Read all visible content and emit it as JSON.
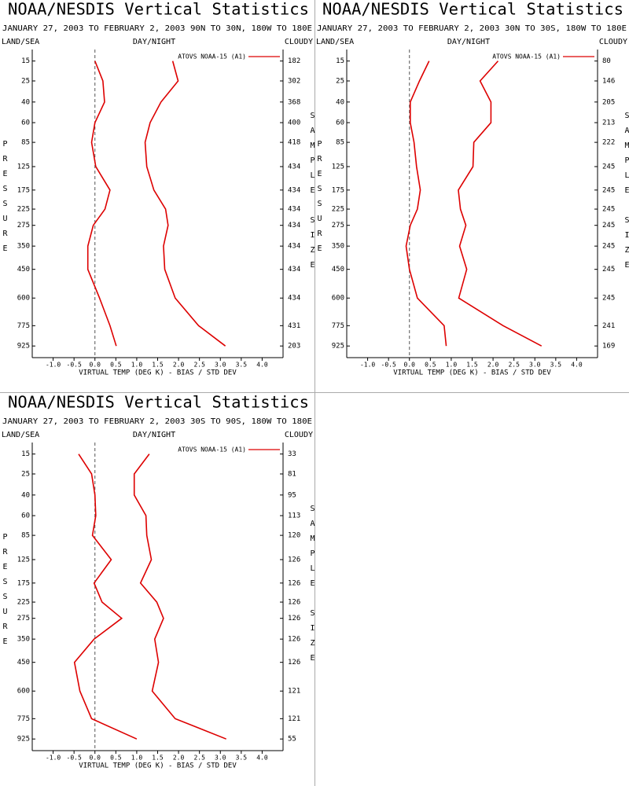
{
  "chart_data": [
    {
      "type": "line",
      "title": "NOAA/NESDIS Vertical Statistics",
      "subtitle": "JANUARY 27, 2003 TO FEBRUARY 2, 2003 90N TO 30N, 180W TO 180E",
      "header_left": "LAND/SEA",
      "header_center": "DAY/NIGHT",
      "header_right": "CLOUDY",
      "ylabel": "PRESSURE",
      "y2label": "SAMPLE SIZE",
      "xlabel": "VIRTUAL TEMP (DEG K) - BIAS / STD DEV",
      "y": [
        15,
        25,
        40,
        60,
        85,
        125,
        175,
        225,
        275,
        350,
        450,
        600,
        775,
        925
      ],
      "ylim": [
        1000,
        10
      ],
      "yticks": [
        15,
        25,
        40,
        60,
        85,
        125,
        175,
        225,
        275,
        350,
        450,
        600,
        775,
        925
      ],
      "xlim": [
        -1.5,
        4.5
      ],
      "xticks": [
        {
          "value": -1,
          "label": "-1.0"
        },
        -0.5,
        {
          "value": 0,
          "label": "0.0"
        },
        0.5,
        {
          "value": 1,
          "label": "1.0"
        },
        1.5,
        {
          "value": 2,
          "label": "2.0"
        },
        2.5,
        {
          "value": 3,
          "label": "3.0"
        },
        3.5,
        {
          "value": 4,
          "label": "4.0"
        }
      ],
      "zero_line": true,
      "sample_size": [
        182,
        302,
        368,
        400,
        418,
        434,
        434,
        434,
        434,
        434,
        434,
        434,
        431,
        203
      ],
      "series": [
        {
          "name": "ATOVS NOAA-15 (A1)",
          "color": "#dd0000",
          "values": [
            0.0,
            0.19,
            0.23,
            0.0,
            -0.08,
            0.02,
            0.36,
            0.24,
            -0.04,
            -0.17,
            -0.17,
            0.11,
            0.36,
            0.51
          ]
        },
        {
          "color": "#dd0000",
          "values": [
            1.86,
            1.99,
            1.58,
            1.32,
            1.2,
            1.24,
            1.41,
            1.69,
            1.75,
            1.64,
            1.67,
            1.92,
            2.48,
            3.12
          ]
        }
      ]
    },
    {
      "type": "line",
      "title": "NOAA/NESDIS Vertical Statistics",
      "subtitle": "JANUARY 27, 2003 TO FEBRUARY 2, 2003 30N TO 30S, 180W TO 180E",
      "header_left": "LAND/SEA",
      "header_center": "DAY/NIGHT",
      "header_right": "CLOUDY",
      "ylabel": "PRESSURE",
      "y2label": "SAMPLE SIZE",
      "xlabel": "VIRTUAL TEMP (DEG K) - BIAS / STD DEV",
      "y": [
        15,
        25,
        40,
        60,
        85,
        125,
        175,
        225,
        275,
        350,
        450,
        600,
        775,
        925
      ],
      "ylim": [
        1000,
        10
      ],
      "yticks": [
        15,
        25,
        40,
        60,
        85,
        125,
        175,
        225,
        275,
        350,
        450,
        600,
        775,
        925
      ],
      "xlim": [
        -1.5,
        4.5
      ],
      "xticks": [
        {
          "value": -1,
          "label": "-1.0"
        },
        -0.5,
        {
          "value": 0,
          "label": "0.0"
        },
        0.5,
        {
          "value": 1,
          "label": "1.0"
        },
        1.5,
        {
          "value": 2,
          "label": "2.0"
        },
        2.5,
        {
          "value": 3,
          "label": "3.0"
        },
        3.5,
        {
          "value": 4,
          "label": "4.0"
        }
      ],
      "zero_line": true,
      "sample_size": [
        80,
        146,
        205,
        213,
        222,
        245,
        245,
        245,
        245,
        245,
        245,
        245,
        241,
        169
      ],
      "series": [
        {
          "name": "ATOVS NOAA-15 (A1)",
          "color": "#dd0000",
          "values": [
            0.47,
            0.24,
            0.02,
            0.02,
            0.11,
            0.17,
            0.26,
            0.19,
            0.02,
            -0.08,
            0.0,
            0.19,
            0.83,
            0.88
          ]
        },
        {
          "color": "#dd0000",
          "values": [
            2.12,
            1.69,
            1.95,
            1.95,
            1.54,
            1.52,
            1.17,
            1.22,
            1.35,
            1.2,
            1.37,
            1.18,
            2.24,
            3.16
          ]
        }
      ]
    },
    {
      "type": "line",
      "title": "NOAA/NESDIS Vertical Statistics",
      "subtitle": "JANUARY 27, 2003 TO FEBRUARY 2, 2003 30S TO 90S, 180W TO 180E",
      "header_left": "LAND/SEA",
      "header_center": "DAY/NIGHT",
      "header_right": "CLOUDY",
      "ylabel": "PRESSURE",
      "y2label": "SAMPLE SIZE",
      "xlabel": "VIRTUAL TEMP (DEG K) - BIAS / STD DEV",
      "y": [
        15,
        25,
        40,
        60,
        85,
        125,
        175,
        225,
        275,
        350,
        450,
        600,
        775,
        925
      ],
      "ylim": [
        1000,
        10
      ],
      "yticks": [
        15,
        25,
        40,
        60,
        85,
        125,
        175,
        225,
        275,
        350,
        450,
        600,
        775,
        925
      ],
      "xlim": [
        -1.5,
        4.5
      ],
      "xticks": [
        {
          "value": -1,
          "label": "-1.0"
        },
        -0.5,
        {
          "value": 0,
          "label": "0.0"
        },
        0.5,
        {
          "value": 1,
          "label": "1.0"
        },
        1.5,
        {
          "value": 2,
          "label": "2.0"
        },
        2.5,
        {
          "value": 3,
          "label": "3.0"
        },
        3.5,
        {
          "value": 4,
          "label": "4.0"
        }
      ],
      "zero_line": true,
      "sample_size": [
        33,
        81,
        95,
        113,
        120,
        126,
        126,
        126,
        126,
        126,
        126,
        121,
        121,
        55
      ],
      "series": [
        {
          "name": "ATOVS NOAA-15 (A1)",
          "color": "#dd0000",
          "values": [
            -0.39,
            -0.08,
            0.0,
            0.02,
            -0.06,
            0.39,
            -0.02,
            0.17,
            0.64,
            -0.02,
            -0.49,
            -0.36,
            -0.08,
            1.0
          ]
        },
        {
          "color": "#dd0000",
          "values": [
            1.3,
            0.94,
            0.94,
            1.22,
            1.24,
            1.35,
            1.09,
            1.48,
            1.64,
            1.43,
            1.52,
            1.37,
            1.92,
            3.14
          ]
        }
      ]
    }
  ]
}
